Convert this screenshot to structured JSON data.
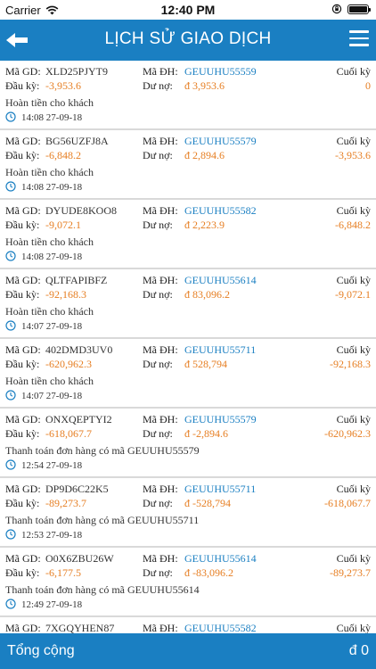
{
  "status_bar": {
    "carrier": "Carrier",
    "time": "12:40 PM"
  },
  "header": {
    "title": "LỊCH SỬ GIAO DỊCH"
  },
  "labels": {
    "code": "Mã GD:",
    "order": "Mã ĐH:",
    "begin": "Đầu kỳ:",
    "balance": "Dư nợ:",
    "end": "Cuối kỳ"
  },
  "transactions": [
    {
      "code": "XLD25PJYT9",
      "order": "GEUUHU55559",
      "begin": "-3,953.6",
      "balance": "đ 3,953.6",
      "end": "0",
      "desc": "Hoàn tiền cho khách",
      "time": "14:08 27-09-18"
    },
    {
      "code": "BG56UZFJ8A",
      "order": "GEUUHU55579",
      "begin": "-6,848.2",
      "balance": "đ 2,894.6",
      "end": "-3,953.6",
      "desc": "Hoàn tiền cho khách",
      "time": "14:08 27-09-18"
    },
    {
      "code": "DYUDE8KOO8",
      "order": "GEUUHU55582",
      "begin": "-9,072.1",
      "balance": "đ 2,223.9",
      "end": "-6,848.2",
      "desc": "Hoàn tiền cho khách",
      "time": "14:08 27-09-18"
    },
    {
      "code": "QLTFAPIBFZ",
      "order": "GEUUHU55614",
      "begin": "-92,168.3",
      "balance": "đ 83,096.2",
      "end": "-9,072.1",
      "desc": "Hoàn tiền cho khách",
      "time": "14:07 27-09-18"
    },
    {
      "code": "402DMD3UV0",
      "order": "GEUUHU55711",
      "begin": "-620,962.3",
      "balance": "đ 528,794",
      "end": "-92,168.3",
      "desc": "Hoàn tiền cho khách",
      "time": "14:07 27-09-18"
    },
    {
      "code": "ONXQEPTYI2",
      "order": "GEUUHU55579",
      "begin": "-618,067.7",
      "balance": "đ -2,894.6",
      "end": "-620,962.3",
      "desc": "Thanh toán đơn hàng có mã GEUUHU55579",
      "time": "12:54 27-09-18"
    },
    {
      "code": "DP9D6C22K5",
      "order": "GEUUHU55711",
      "begin": "-89,273.7",
      "balance": "đ -528,794",
      "end": "-618,067.7",
      "desc": "Thanh toán đơn hàng có mã GEUUHU55711",
      "time": "12:53 27-09-18"
    },
    {
      "code": "O0X6ZBU26W",
      "order": "GEUUHU55614",
      "begin": "-6,177.5",
      "balance": "đ -83,096.2",
      "end": "-89,273.7",
      "desc": "Thanh toán đơn hàng có mã GEUUHU55614",
      "time": "12:49 27-09-18"
    },
    {
      "code": "7XGQYHEN87",
      "order": "GEUUHU55582",
      "begin": "",
      "balance": "",
      "end": "",
      "desc": "",
      "time": ""
    }
  ],
  "footer": {
    "label": "Tổng cộng",
    "value": "đ 0"
  },
  "colors": {
    "primary": "#1a7fc2",
    "amount": "#e67e22",
    "link": "#1a7fc2"
  },
  "icons": {
    "back": "arrow-left-icon",
    "menu": "hamburger-menu-icon",
    "time": "clock-icon"
  }
}
